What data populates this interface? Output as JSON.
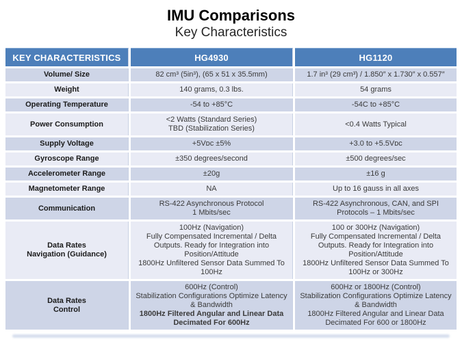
{
  "title": "IMU Comparisons",
  "subtitle": "Key Characteristics",
  "table": {
    "headers": {
      "key": "KEY CHARACTERISTICS",
      "hg4930": "HG4930",
      "hg1120": "HG1120"
    },
    "colors": {
      "header_bg": "#4d7fba",
      "band_dark": "#ced5e7",
      "band_light": "#e9ebf5",
      "header_text": "#ffffff"
    },
    "rows": [
      {
        "label": "Volume/ Size",
        "hg4930": "82 cm³ (5in³), (65 x 51 x 35.5mm)",
        "hg1120": "1.7 in³ (29 cm³) / 1.850″ x 1.730″ x 0.557″"
      },
      {
        "label": "Weight",
        "hg4930": "140 grams, 0.3 lbs.",
        "hg1120": "54 grams"
      },
      {
        "label": "Operating Temperature",
        "hg4930": "-54 to +85°C",
        "hg1120": "-54C to +85°C"
      },
      {
        "label": "Power Consumption",
        "hg4930": "<2 Watts (Standard Series)\nTBD (Stabilization Series)",
        "hg1120": "<0.4 Watts Typical"
      },
      {
        "label": "Supply Voltage",
        "hg4930": "+5Vᴅᴄ ±5%",
        "hg1120": "+3.0 to +5.5Vᴅᴄ"
      },
      {
        "label": "Gyroscope Range",
        "hg4930": "±350 degrees/second",
        "hg1120": "±500 degrees/sec"
      },
      {
        "label": "Accelerometer Range",
        "hg4930": "±20g",
        "hg1120": "±16 g"
      },
      {
        "label": "Magnetometer Range",
        "hg4930": "NA",
        "hg1120": "Up to 16 gauss in all axes"
      },
      {
        "label": "Communication",
        "hg4930": "RS-422 Asynchronous Protocol\n1 Mbits/sec",
        "hg1120": "RS-422 Asynchronous, CAN, and SPI\nProtocols – 1 Mbits/sec"
      },
      {
        "label": "Data Rates\nNavigation (Guidance)",
        "hg4930": "100Hz (Navigation)\nFully Compensated Incremental / Delta\nOutputs. Ready for Integration into\nPosition/Attitude\n1800Hz Unfiltered Sensor Data Summed To\n100Hz",
        "hg1120": "100 or 300Hz (Navigation)\nFully Compensated Incremental / Delta\nOutputs. Ready for Integration into\nPosition/Attitude\n1800Hz Unfiltered Sensor Data Summed To\n100Hz or 300Hz"
      },
      {
        "label": "Data Rates\nControl",
        "hg4930": "600Hz (Control)\nStabilization Configurations Optimize Latency\n& Bandwidth",
        "hg4930_bold": "1800Hz Filtered Angular and Linear Data\nDecimated For 600Hz",
        "hg1120": "600Hz or 1800Hz (Control)\nStabilization Configurations Optimize Latency\n& Bandwidth\n1800Hz Filtered Angular and Linear Data\nDecimated For 600 or 1800Hz"
      }
    ]
  }
}
